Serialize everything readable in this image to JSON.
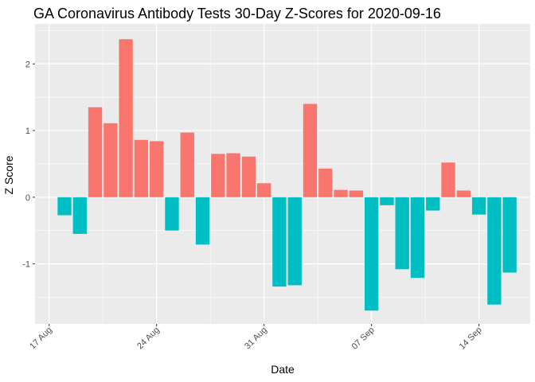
{
  "chart_data": {
    "type": "bar",
    "title": "GA Coronavirus Antibody Tests 30-Day Z-Scores for 2020-09-16",
    "xlabel": "Date",
    "ylabel": "Z Score",
    "ylim": [
      -1.9,
      2.6
    ],
    "y_ticks": [
      -1,
      0,
      1,
      2
    ],
    "x_ticks": [
      "17 Aug",
      "24 Aug",
      "31 Aug",
      "07 Sep",
      "14 Sep"
    ],
    "x_tick_rotation": "45deg",
    "grid": true,
    "legend": "none",
    "colors": {
      "positive": "#F8766D",
      "negative": "#00BFC4",
      "panel": "#EBEBEB",
      "grid": "#FFFFFF"
    },
    "series": [
      {
        "dates": [
          "2020-08-18",
          "2020-08-19",
          "2020-08-20",
          "2020-08-21",
          "2020-08-22",
          "2020-08-23",
          "2020-08-24",
          "2020-08-25",
          "2020-08-26",
          "2020-08-27",
          "2020-08-28",
          "2020-08-29",
          "2020-08-30",
          "2020-08-31",
          "2020-09-01",
          "2020-09-02",
          "2020-09-03",
          "2020-09-04",
          "2020-09-05",
          "2020-09-06",
          "2020-09-07",
          "2020-09-08",
          "2020-09-09",
          "2020-09-10",
          "2020-09-11",
          "2020-09-12",
          "2020-09-13",
          "2020-09-14",
          "2020-09-15",
          "2020-09-16"
        ],
        "values": [
          -0.27,
          -0.55,
          1.35,
          1.11,
          2.37,
          0.86,
          0.84,
          -0.5,
          0.97,
          -0.71,
          0.65,
          0.66,
          0.61,
          0.21,
          -1.34,
          -1.32,
          1.4,
          0.43,
          0.11,
          0.1,
          -1.7,
          -0.12,
          -1.08,
          -1.21,
          -0.2,
          0.52,
          0.1,
          -0.26,
          -1.61,
          -1.13
        ]
      }
    ]
  }
}
